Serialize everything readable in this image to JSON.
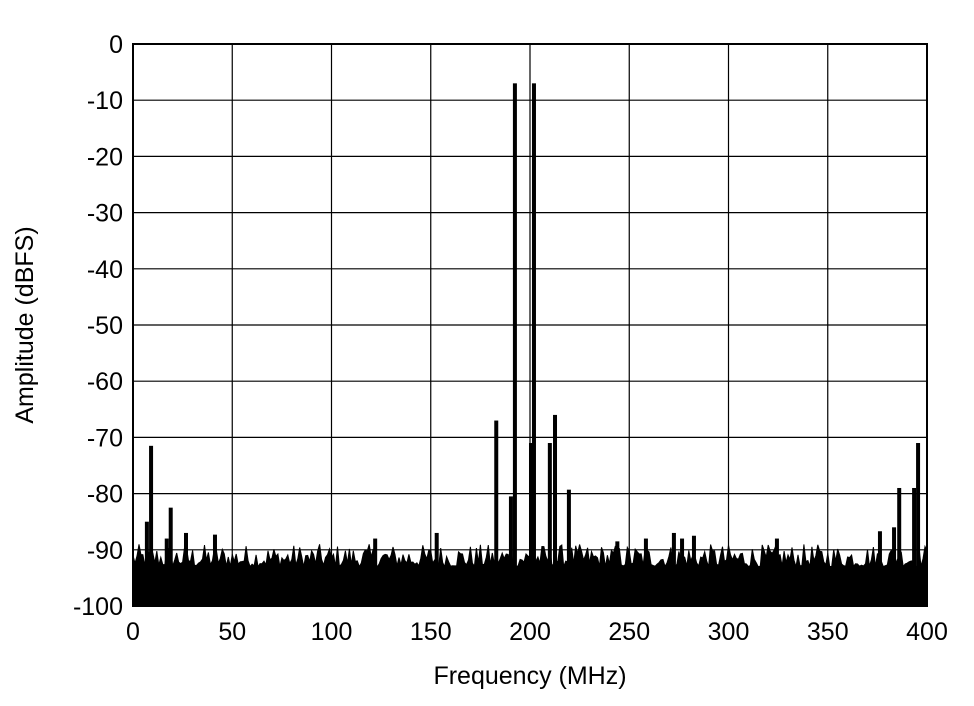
{
  "chart_data": {
    "type": "line",
    "title": "",
    "xlabel": "Frequency (MHz)",
    "ylabel": "Amplitude (dBFS)",
    "xlim": [
      0,
      400
    ],
    "ylim": [
      -100,
      0
    ],
    "xticks": [
      0,
      50,
      100,
      150,
      200,
      250,
      300,
      350,
      400
    ],
    "yticks": [
      0,
      -10,
      -20,
      -30,
      -40,
      -50,
      -60,
      -70,
      -80,
      -90,
      -100
    ],
    "grid": true,
    "line_color": "#000000",
    "noise_floor_dbfs": [
      -93,
      -89
    ],
    "spurs": [
      {
        "x": 7.0,
        "y": -85
      },
      {
        "x": 9.1,
        "y": -71.5
      },
      {
        "x": 17.0,
        "y": -88
      },
      {
        "x": 19.0,
        "y": -82.5
      },
      {
        "x": 26.7,
        "y": -87
      },
      {
        "x": 41.3,
        "y": -87.3
      },
      {
        "x": 122.0,
        "y": -88
      },
      {
        "x": 153.0,
        "y": -87
      },
      {
        "x": 183.0,
        "y": -67
      },
      {
        "x": 190.4,
        "y": -80.5
      },
      {
        "x": 192.4,
        "y": -7
      },
      {
        "x": 200.5,
        "y": -71
      },
      {
        "x": 202.0,
        "y": -7
      },
      {
        "x": 210.0,
        "y": -71
      },
      {
        "x": 212.6,
        "y": -66
      },
      {
        "x": 219.6,
        "y": -79.3
      },
      {
        "x": 244.0,
        "y": -88.5
      },
      {
        "x": 258.4,
        "y": -88
      },
      {
        "x": 272.5,
        "y": -87
      },
      {
        "x": 276.6,
        "y": -88
      },
      {
        "x": 282.6,
        "y": -87.5
      },
      {
        "x": 324.4,
        "y": -88
      },
      {
        "x": 376.3,
        "y": -86.7
      },
      {
        "x": 383.4,
        "y": -86
      },
      {
        "x": 386.0,
        "y": -79
      },
      {
        "x": 393.5,
        "y": -79
      },
      {
        "x": 395.5,
        "y": -71
      }
    ]
  }
}
